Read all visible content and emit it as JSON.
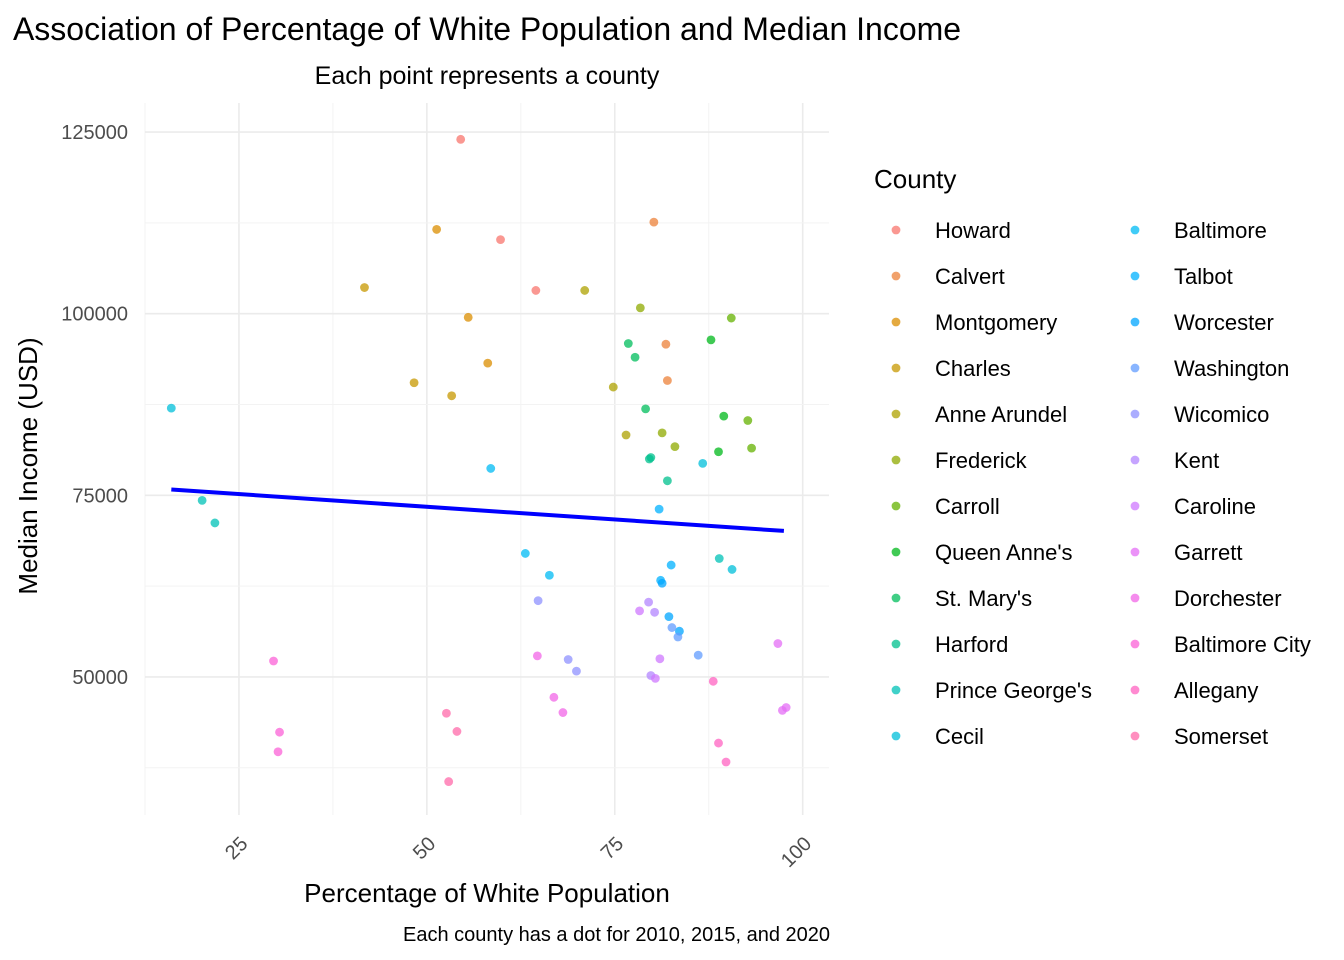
{
  "chart_data": {
    "type": "scatter",
    "title": "Association of Percentage of White Population and Median Income",
    "subtitle": "Each point represents a county",
    "xlabel": "Percentage of White Population",
    "ylabel": "Median Income (USD)",
    "caption": "Each county has a dot for 2010, 2015, and 2020",
    "xlim": [
      12.5,
      103.5
    ],
    "ylim": [
      31000,
      129000
    ],
    "x_ticks": [
      25,
      50,
      75,
      100
    ],
    "x_tick_labels": [
      "25",
      "50",
      "75",
      "100"
    ],
    "y_ticks": [
      50000,
      75000,
      100000,
      125000
    ],
    "y_tick_labels": [
      "50000",
      "75000",
      "100000",
      "125000"
    ],
    "grid": true,
    "legend": {
      "title": "County",
      "position": "right",
      "columns": 2
    },
    "trend_line": {
      "color": "#0000ff",
      "x": [
        16,
        97.5
      ],
      "y": [
        75800,
        70100
      ]
    },
    "series": [
      {
        "name": "Howard",
        "color": "#F8766D",
        "points": [
          [
            54.5,
            124000
          ],
          [
            64.5,
            103200
          ],
          [
            59.8,
            110200
          ]
        ]
      },
      {
        "name": "Calvert",
        "color": "#EC8239",
        "points": [
          [
            80.2,
            112600
          ],
          [
            81.8,
            95800
          ],
          [
            82.0,
            90800
          ]
        ]
      },
      {
        "name": "Montgomery",
        "color": "#DB8E00",
        "points": [
          [
            51.3,
            111600
          ],
          [
            55.5,
            99500
          ],
          [
            58.1,
            93200
          ]
        ]
      },
      {
        "name": "Charles",
        "color": "#C79800",
        "points": [
          [
            41.7,
            103600
          ],
          [
            48.3,
            90500
          ],
          [
            53.3,
            88700
          ]
        ]
      },
      {
        "name": "Anne Arundel",
        "color": "#AEA200",
        "points": [
          [
            71.0,
            103200
          ],
          [
            74.8,
            89900
          ],
          [
            76.5,
            83300
          ]
        ]
      },
      {
        "name": "Frederick",
        "color": "#8FAA00",
        "points": [
          [
            78.4,
            100800
          ],
          [
            81.3,
            83600
          ],
          [
            83.0,
            81700
          ]
        ]
      },
      {
        "name": "Carroll",
        "color": "#64B200",
        "points": [
          [
            90.5,
            99400
          ],
          [
            92.7,
            85300
          ],
          [
            93.2,
            81500
          ]
        ]
      },
      {
        "name": "Queen Anne's",
        "color": "#00B81B",
        "points": [
          [
            87.8,
            96400
          ],
          [
            89.5,
            85900
          ],
          [
            88.8,
            81000
          ]
        ]
      },
      {
        "name": "St. Mary's",
        "color": "#00BD5C",
        "points": [
          [
            76.8,
            95900
          ],
          [
            77.7,
            94000
          ],
          [
            79.1,
            86900
          ]
        ]
      },
      {
        "name": "Harford",
        "color": "#00C08E",
        "points": [
          [
            79.8,
            80200
          ],
          [
            79.6,
            80000
          ],
          [
            82.0,
            77000
          ]
        ]
      },
      {
        "name": "Prince George's",
        "color": "#00C1B7",
        "points": [
          [
            20.1,
            74300
          ],
          [
            21.8,
            71200
          ],
          [
            88.9,
            66300
          ]
        ]
      },
      {
        "name": "Cecil",
        "color": "#00BFD9",
        "points": [
          [
            16.0,
            87000
          ],
          [
            86.7,
            79400
          ],
          [
            90.6,
            64800
          ]
        ]
      },
      {
        "name": "Baltimore",
        "color": "#00BBF4",
        "points": [
          [
            58.5,
            78700
          ],
          [
            63.1,
            67000
          ],
          [
            66.3,
            64000
          ]
        ]
      },
      {
        "name": "Talbot",
        "color": "#00B2FF",
        "points": [
          [
            80.9,
            73100
          ],
          [
            82.5,
            65400
          ],
          [
            81.1,
            63300
          ]
        ]
      },
      {
        "name": "Worcester",
        "color": "#00A5FF",
        "points": [
          [
            81.3,
            62900
          ],
          [
            82.2,
            58300
          ],
          [
            83.6,
            56300
          ]
        ]
      },
      {
        "name": "Washington",
        "color": "#619CFF",
        "points": [
          [
            82.6,
            56800
          ],
          [
            83.4,
            55500
          ],
          [
            86.1,
            53000
          ]
        ]
      },
      {
        "name": "Wicomico",
        "color": "#8F91FF",
        "points": [
          [
            64.8,
            60500
          ],
          [
            68.8,
            52400
          ],
          [
            69.9,
            50800
          ]
        ]
      },
      {
        "name": "Kent",
        "color": "#B385FF",
        "points": [
          [
            79.5,
            60300
          ],
          [
            80.3,
            58900
          ],
          [
            79.8,
            50200
          ]
        ]
      },
      {
        "name": "Caroline",
        "color": "#CF78FF",
        "points": [
          [
            78.3,
            59100
          ],
          [
            81.0,
            52500
          ],
          [
            80.4,
            49800
          ]
        ]
      },
      {
        "name": "Garrett",
        "color": "#E46EF6",
        "points": [
          [
            96.7,
            54600
          ],
          [
            97.3,
            45400
          ],
          [
            97.8,
            45800
          ]
        ]
      },
      {
        "name": "Dorchester",
        "color": "#F265E7",
        "points": [
          [
            64.7,
            52900
          ],
          [
            66.9,
            47200
          ],
          [
            68.1,
            45100
          ]
        ]
      },
      {
        "name": "Baltimore City",
        "color": "#FB61D7",
        "points": [
          [
            29.6,
            52200
          ],
          [
            30.4,
            42400
          ],
          [
            30.2,
            39700
          ]
        ]
      },
      {
        "name": "Allegany",
        "color": "#FF63C2",
        "points": [
          [
            88.1,
            49400
          ],
          [
            88.8,
            40900
          ],
          [
            89.8,
            38300
          ]
        ]
      },
      {
        "name": "Somerset",
        "color": "#FF6AA9",
        "points": [
          [
            52.6,
            45000
          ],
          [
            54.0,
            42500
          ],
          [
            52.9,
            35600
          ]
        ]
      }
    ]
  }
}
